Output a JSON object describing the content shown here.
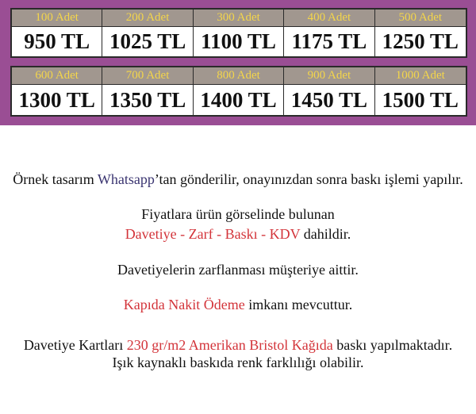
{
  "prices_row1": [
    {
      "qty": "100 Adet",
      "price": "950 TL"
    },
    {
      "qty": "200 Adet",
      "price": "1025 TL"
    },
    {
      "qty": "300 Adet",
      "price": "1100 TL"
    },
    {
      "qty": "400 Adet",
      "price": "1175 TL"
    },
    {
      "qty": "500 Adet",
      "price": "1250 TL"
    }
  ],
  "prices_row2": [
    {
      "qty": "600 Adet",
      "price": "1300 TL"
    },
    {
      "qty": "700 Adet",
      "price": "1350 TL"
    },
    {
      "qty": "800 Adet",
      "price": "1400 TL"
    },
    {
      "qty": "900 Adet",
      "price": "1450 TL"
    },
    {
      "qty": "1000 Adet",
      "price": "1500 TL"
    }
  ],
  "info": {
    "l1a": "Örnek tasarım ",
    "l1b": "Whatsapp",
    "l1c": "’tan gönderilir, onayınızdan sonra baskı işlemi yapılır.",
    "l2": "Fiyatlara ürün görselinde bulunan",
    "l3a": "Davetiye - Zarf - Baskı - KDV",
    "l3b": " dahildir.",
    "l4": "Davetiyelerin zarflanması müşteriye aittir.",
    "l5a": "Kapıda Nakit Ödeme",
    "l5b": " imkanı mevcuttur.",
    "l6a": "Davetiye Kartları ",
    "l6b": "230 gr/m2 Amerikan Bristol Kağıda",
    "l6c": " baskı yapılmaktadır.",
    "l7": "Işık kaynaklı baskıda renk farklılığı olabilir."
  },
  "colors": {
    "banner": "#9a4e94",
    "header": "#a1978f",
    "qty_text": "#f4d64a",
    "highlight": "#d3343a",
    "whatsapp": "#3a3470"
  }
}
